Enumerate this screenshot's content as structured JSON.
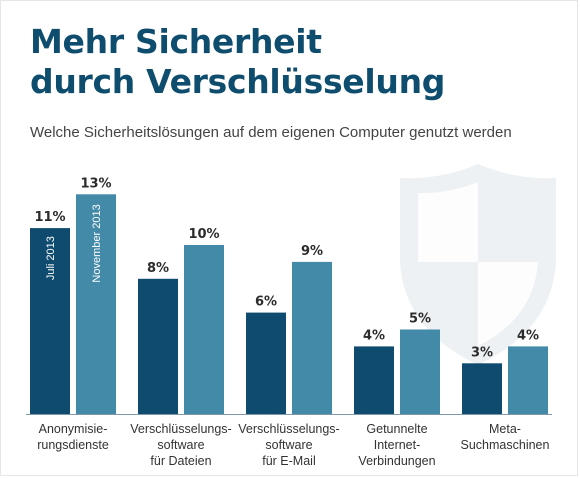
{
  "header": {
    "title_line1": "Mehr Sicherheit",
    "title_line2": "durch Verschlüsselung",
    "subtitle": "Welche Sicherheitslösungen auf dem eigenen Computer genutzt werden"
  },
  "colors": {
    "title": "#0f4d6e",
    "series_dark": "#0e4b6e",
    "series_light": "#4389a8",
    "axis": "#7f98a8",
    "shield": "#eef1f3"
  },
  "watermark_icon": "shield-icon",
  "chart_data": {
    "type": "bar",
    "categories": [
      [
        "Anonymisie-",
        "rungsdienste"
      ],
      [
        "Verschlüsselungs-",
        "software",
        "für Dateien"
      ],
      [
        "Verschlüsselungs-",
        "software",
        "für E-Mail"
      ],
      [
        "Getunnelte",
        "Internet-",
        "Verbindungen"
      ],
      [
        "Meta-",
        "Suchmaschinen"
      ]
    ],
    "series": [
      {
        "name": "Juli 2013",
        "values": [
          11,
          8,
          6,
          4,
          3
        ],
        "labels": [
          "11%",
          "8%",
          "6%",
          "4%",
          "3%"
        ]
      },
      {
        "name": "November 2013",
        "values": [
          13,
          10,
          9,
          5,
          4
        ],
        "labels": [
          "13%",
          "10%",
          "9%",
          "5%",
          "4%"
        ]
      }
    ],
    "ylim": [
      0,
      14
    ],
    "legend": "inside-first-bars",
    "grid": false
  }
}
